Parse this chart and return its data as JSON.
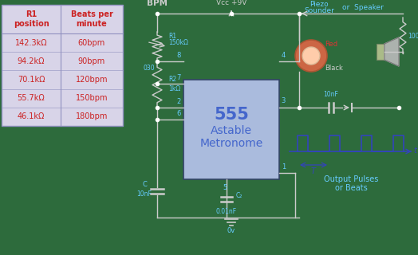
{
  "bg_color": "#2d6b3c",
  "table_bg": "#d8d4e8",
  "table_border": "#9090c0",
  "title_color": "#cc2222",
  "data_color": "#cc2222",
  "wire_color": "#cccccc",
  "label_color": "#66ccff",
  "chip_bg": "#aabbdd",
  "chip_text": "#4466cc",
  "pulse_color": "#3344bb",
  "red_color": "#dd3333",
  "piezo_fill": "#cc6644",
  "piezo_light": "#ffccaa",
  "speaker_fill": "#aabb88",
  "table_rows": [
    [
      "142.3kΩ",
      "60bpm"
    ],
    [
      "94.2kΩ",
      "90bpm"
    ],
    [
      "70.1kΩ",
      "120bpm"
    ],
    [
      "55.7kΩ",
      "150bpm"
    ],
    [
      "46.1kΩ",
      "180bpm"
    ]
  ],
  "col_headers": [
    "R1\nposition",
    "Beats per\nminute"
  ],
  "chip_label1": "555",
  "chip_label2": "Astable",
  "chip_label3": "Metronome"
}
